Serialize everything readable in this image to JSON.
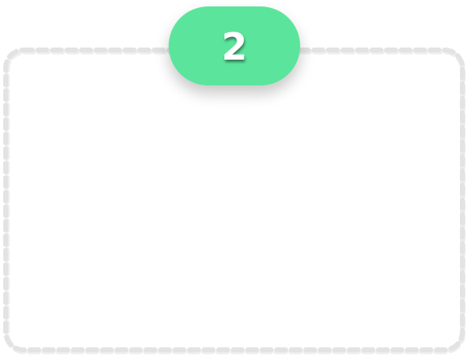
{
  "step": {
    "number": "2"
  },
  "colors": {
    "pill_fill": "#5be59c",
    "number_text": "#ffffff",
    "frame_dash": "#e3e3e3",
    "frame_inner_shadow": "#eeeeee",
    "background": "#ffffff"
  }
}
